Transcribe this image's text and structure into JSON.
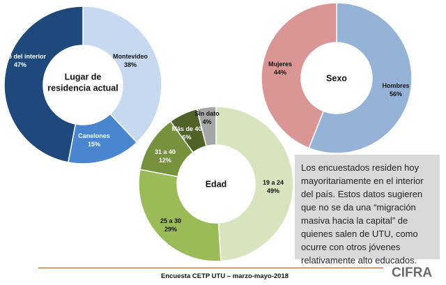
{
  "chart_data": [
    {
      "type": "pie",
      "title": "Lugar de residencia actual",
      "slices": [
        {
          "label": "Montevideo",
          "value": 38,
          "display": "38%",
          "color": "#c6d9f1"
        },
        {
          "label": "Canelones",
          "value": 15,
          "display": "15%",
          "color": "#4a86d0"
        },
        {
          "label": "Resto del interior",
          "value": 47,
          "display": "47%",
          "color": "#1f497d"
        }
      ]
    },
    {
      "type": "pie",
      "title": "Sexo",
      "slices": [
        {
          "label": "Hombres",
          "value": 56,
          "display": "56%",
          "color": "#95b3d7"
        },
        {
          "label": "Mujeres",
          "value": 44,
          "display": "44%",
          "color": "#d99694"
        }
      ]
    },
    {
      "type": "pie",
      "title": "Edad",
      "slices": [
        {
          "label": "19 a 24",
          "value": 49,
          "display": "49%",
          "color": "#d7e4bd"
        },
        {
          "label": "25 a 30",
          "value": 29,
          "display": "29%",
          "color": "#9bbb59"
        },
        {
          "label": "31 a 40",
          "value": 12,
          "display": "12%",
          "color": "#76923c"
        },
        {
          "label": "Más de 40",
          "value": 6,
          "display": "6%",
          "color": "#4f6228"
        },
        {
          "label": "Sin dato",
          "value": 4,
          "display": "4%",
          "color": "#a6a6a6"
        }
      ]
    }
  ],
  "info_text": "Los encuestados residen hoy mayoritariamente en el interior del país. Estos datos sugieren que no se da una “migración masiva hacia la capital” de quienes salen de UTU, como ocurre con otros jóvenes relativamente alto educados.",
  "footer": {
    "text": "Encuesta CETP UTU – marzo-mayo-2018"
  },
  "logo": {
    "text": "CIFRA",
    "color": "#6b6b6b"
  }
}
